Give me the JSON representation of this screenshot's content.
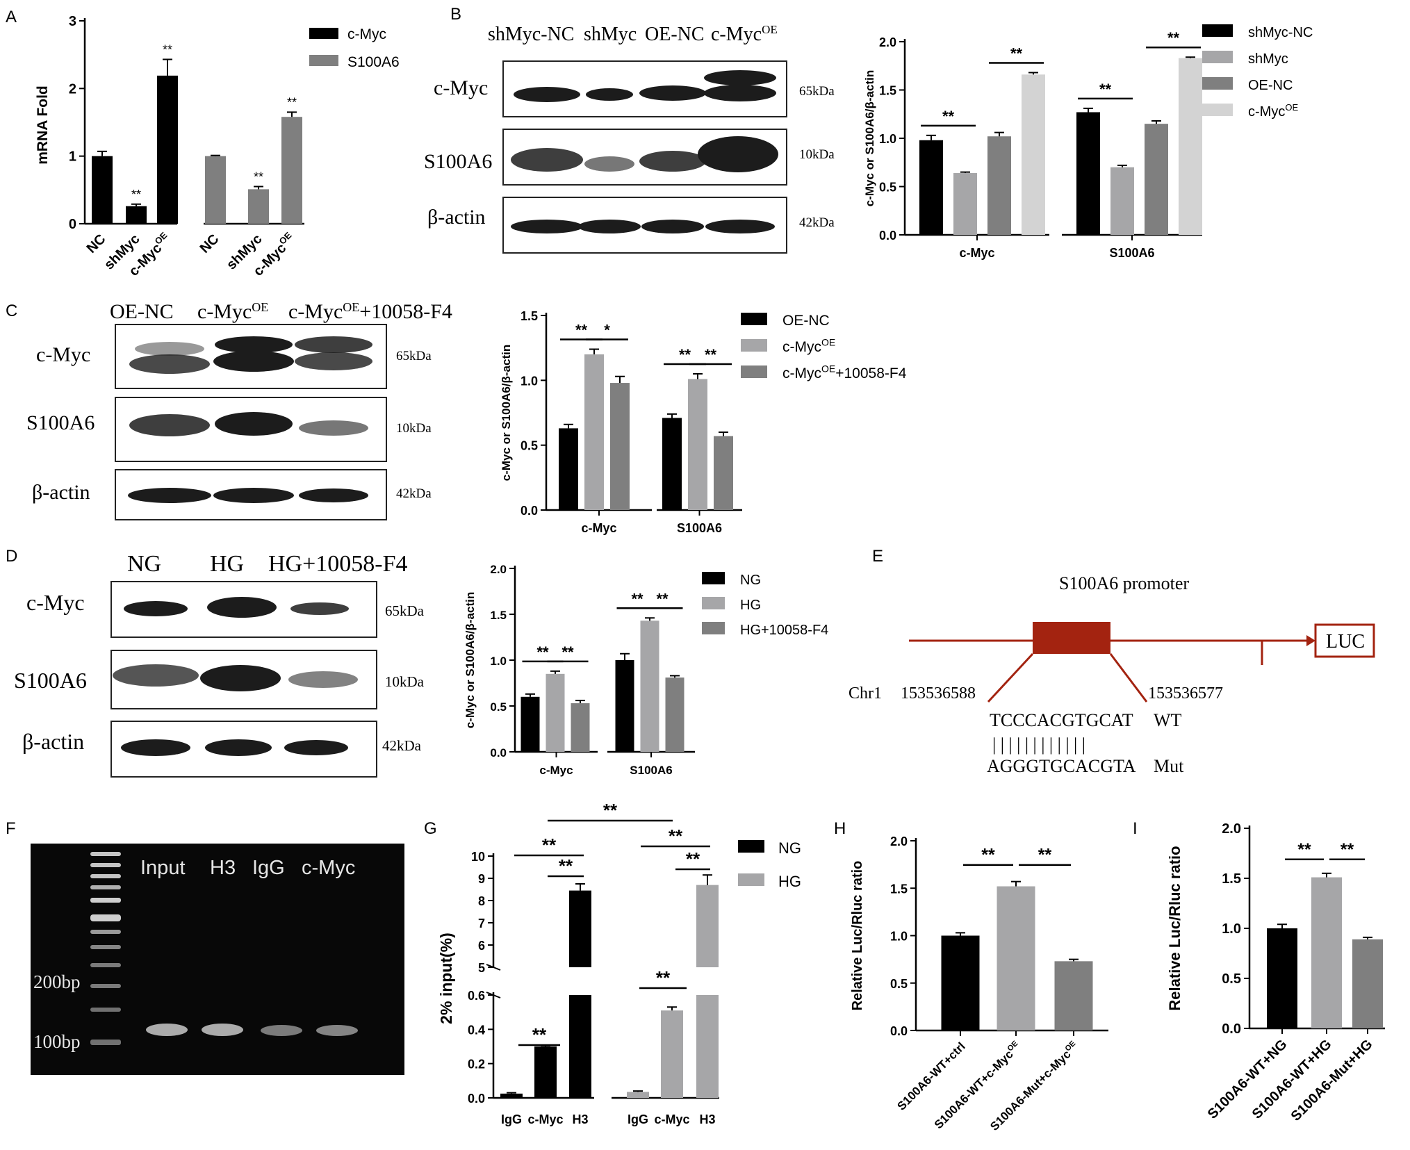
{
  "colors": {
    "black": "#000000",
    "light": "#a6a6a8",
    "gray": "#7f7f7f",
    "pale": "#d3d3d3",
    "red": "#a32310"
  },
  "panels": {
    "A": {
      "letter": "A"
    },
    "B": {
      "letter": "B",
      "blot_cols": [
        "shMyc-NC",
        "shMyc",
        "OE-NC",
        "c-Myc"
      ],
      "blot_col_sup": "OE",
      "rows": [
        "c-Myc",
        "S100A6",
        "β-actin"
      ],
      "sizes": [
        "65kDa",
        "10kDa",
        "42kDa"
      ]
    },
    "C": {
      "letter": "C",
      "blot_cols": [
        "OE-NC",
        "c-Myc",
        "c-Myc"
      ],
      "blot_col_sup": "OE",
      "blot_col_suffix": "+10058-F4",
      "rows": [
        "c-Myc",
        "S100A6",
        "β-actin"
      ],
      "sizes": [
        "65kDa",
        "10kDa",
        "42kDa"
      ]
    },
    "D": {
      "letter": "D",
      "blot_cols": [
        "NG",
        "HG",
        "HG+10058-F4"
      ],
      "rows": [
        "c-Myc",
        "S100A6",
        "β-actin"
      ],
      "sizes": [
        "65kDa",
        "10kDa",
        "42kDa"
      ]
    },
    "E": {
      "letter": "E",
      "title": "S100A6  promoter",
      "chr": "Chr1",
      "pos_left": "153536588",
      "pos_right": "153536577",
      "wt_seq": "TCCCACGTGCAT",
      "wt_label": "WT",
      "mut_seq": "AGGGTGCACGTA",
      "mut_label": "Mut",
      "ticks": "| | | | | | | | | | | |",
      "luc": "LUC"
    },
    "F": {
      "letter": "F",
      "lanes": [
        "Input",
        "H3",
        "IgG",
        "c-Myc"
      ],
      "markers": [
        "200bp",
        "100bp"
      ]
    },
    "G": {
      "letter": "G"
    },
    "H": {
      "letter": "H"
    },
    "I": {
      "letter": "I"
    }
  },
  "chart_data": [
    {
      "panel": "A",
      "type": "bar",
      "ylabel": "mRNA Fold",
      "ylim": [
        0,
        3
      ],
      "yticks": [
        "0",
        "1",
        "2",
        "3"
      ],
      "legend": [
        "c-Myc",
        "S100A6"
      ],
      "categories": [
        "NC",
        "shMyc",
        "c-Myc",
        "NC",
        "shMyc",
        "c-Myc"
      ],
      "category_sup": [
        "",
        "",
        "OE",
        "",
        "",
        "OE"
      ],
      "values": [
        1.0,
        0.26,
        2.19,
        1.0,
        0.51,
        1.58
      ],
      "errors": [
        0.07,
        0.03,
        0.24,
        0.01,
        0.04,
        0.07
      ],
      "series": [
        0,
        0,
        0,
        1,
        1,
        1
      ],
      "stars": [
        "",
        "**",
        "**",
        "",
        "**",
        "**"
      ]
    },
    {
      "panel": "B",
      "type": "bar",
      "ylabel": "c-Myc or S100A6/β-actin",
      "ylim": [
        0,
        2.0
      ],
      "yticks": [
        "0.0",
        "0.5",
        "1.0",
        "1.5",
        "2.0"
      ],
      "groups": [
        "c-Myc",
        "S100A6"
      ],
      "legend": [
        "shMyc-NC",
        "shMyc",
        "OE-NC",
        "c-Myc"
      ],
      "legend_sup": [
        "",
        "",
        "",
        "OE"
      ],
      "values": [
        [
          0.98,
          0.64,
          1.02,
          1.66
        ],
        [
          1.27,
          0.7,
          1.15,
          1.83
        ]
      ],
      "errors": [
        [
          0.05,
          0.01,
          0.04,
          0.02
        ],
        [
          0.04,
          0.02,
          0.03,
          0.01
        ]
      ],
      "sig": [
        {
          "g": 0,
          "a": 0,
          "b": 1,
          "label": "**"
        },
        {
          "g": 0,
          "a": 2,
          "b": 3,
          "label": "**"
        },
        {
          "g": 1,
          "a": 0,
          "b": 1,
          "label": "**"
        },
        {
          "g": 1,
          "a": 2,
          "b": 3,
          "label": "**"
        }
      ]
    },
    {
      "panel": "C",
      "type": "bar",
      "ylabel": "c-Myc or S100A6/β-actin",
      "ylim": [
        0,
        1.5
      ],
      "yticks": [
        "0.0",
        "0.5",
        "1.0",
        "1.5"
      ],
      "groups": [
        "c-Myc",
        "S100A6"
      ],
      "legend": [
        "OE-NC",
        "c-Myc",
        "c-Myc"
      ],
      "legend_sup": [
        "",
        "OE",
        "OE"
      ],
      "legend_suffix": [
        "",
        "",
        "+10058-F4"
      ],
      "values": [
        [
          0.63,
          1.2,
          0.98
        ],
        [
          0.71,
          1.01,
          0.57
        ]
      ],
      "errors": [
        [
          0.03,
          0.04,
          0.05
        ],
        [
          0.03,
          0.04,
          0.03
        ]
      ],
      "sig": [
        {
          "g": 0,
          "a": 0,
          "b": 1,
          "label": "**"
        },
        {
          "g": 0,
          "a": 1,
          "b": 2,
          "label": "*"
        },
        {
          "g": 1,
          "a": 0,
          "b": 1,
          "label": "**"
        },
        {
          "g": 1,
          "a": 1,
          "b": 2,
          "label": "**"
        }
      ]
    },
    {
      "panel": "D",
      "type": "bar",
      "ylabel": "c-Myc or S100A6/β-actin",
      "ylim": [
        0,
        2.0
      ],
      "yticks": [
        "0.0",
        "0.5",
        "1.0",
        "1.5",
        "2.0"
      ],
      "groups": [
        "c-Myc",
        "S100A6"
      ],
      "legend": [
        "NG",
        "HG",
        "HG+10058-F4"
      ],
      "values": [
        [
          0.6,
          0.85,
          0.53
        ],
        [
          1.0,
          1.43,
          0.81
        ]
      ],
      "errors": [
        [
          0.03,
          0.03,
          0.03
        ],
        [
          0.07,
          0.03,
          0.02
        ]
      ],
      "sig": [
        {
          "g": 0,
          "a": 0,
          "b": 1,
          "label": "**"
        },
        {
          "g": 0,
          "a": 1,
          "b": 2,
          "label": "**"
        },
        {
          "g": 1,
          "a": 0,
          "b": 1,
          "label": "**"
        },
        {
          "g": 1,
          "a": 1,
          "b": 2,
          "label": "**"
        }
      ]
    },
    {
      "panel": "G",
      "type": "bar",
      "ylabel": "2% input(%)",
      "axis_break": true,
      "lower_yticks": [
        "0.0",
        "0.2",
        "0.4",
        "0.6"
      ],
      "upper_yticks": [
        "5",
        "6",
        "7",
        "8",
        "9",
        "10"
      ],
      "legend": [
        "NG",
        "HG"
      ],
      "groups": [
        [
          "IgG",
          "c-Myc",
          "H3"
        ],
        [
          "IgG",
          "c-Myc",
          "H3"
        ]
      ],
      "values": [
        [
          0.025,
          0.3,
          8.45
        ],
        [
          0.035,
          0.51,
          8.7
        ]
      ],
      "errors": [
        [
          0.005,
          0.005,
          0.3
        ],
        [
          0.005,
          0.02,
          0.45
        ]
      ],
      "stars": [
        "**",
        "**",
        "**",
        "**",
        "**",
        "**"
      ]
    },
    {
      "panel": "H",
      "type": "bar",
      "ylabel": "Relative Luc/Rluc ratio",
      "ylim": [
        0,
        2.0
      ],
      "yticks": [
        "0.0",
        "0.5",
        "1.0",
        "1.5",
        "2.0"
      ],
      "categories": [
        "S100A6-WT+ctrl",
        "S100A6-WT+c-Myc",
        "S100A6-Mut+c-Myc"
      ],
      "category_sup": [
        "",
        "OE",
        "OE"
      ],
      "values": [
        1.0,
        1.52,
        0.73
      ],
      "errors": [
        0.03,
        0.05,
        0.02
      ],
      "stars": [
        "**",
        "**"
      ]
    },
    {
      "panel": "I",
      "type": "bar",
      "ylabel": "Relative Luc/Rluc ratio",
      "ylim": [
        0,
        2.0
      ],
      "yticks": [
        "0.0",
        "0.5",
        "1.0",
        "1.5",
        "2.0"
      ],
      "categories": [
        "S100A6-WT+NG",
        "S100A6-WT+HG",
        "S100A6-Mut+HG"
      ],
      "values": [
        1.0,
        1.51,
        0.89
      ],
      "errors": [
        0.04,
        0.04,
        0.02
      ],
      "stars": [
        "**",
        "**"
      ]
    }
  ]
}
